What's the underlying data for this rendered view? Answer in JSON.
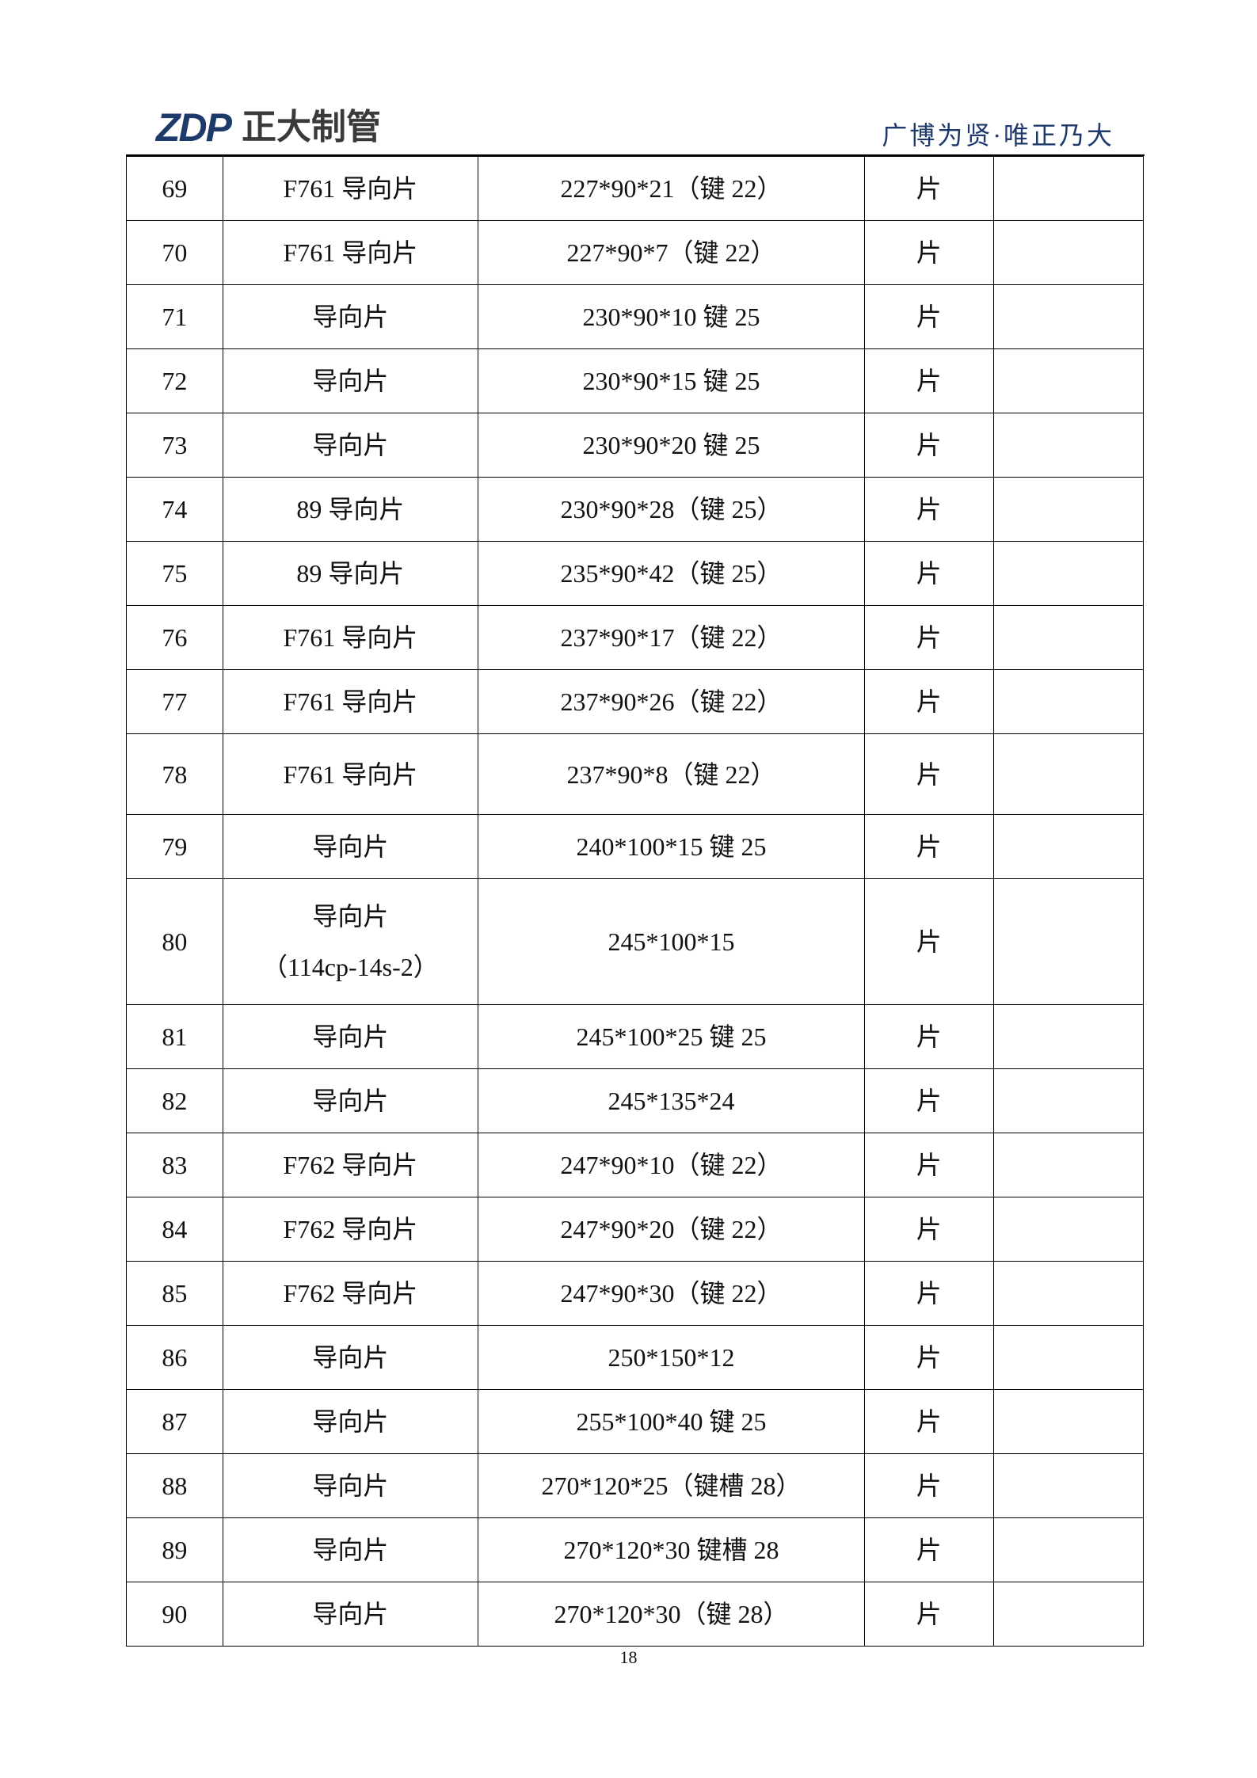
{
  "header": {
    "logo_mark": "ZDP",
    "logo_name": "正大制管",
    "slogan": "广博为贤·唯正乃大"
  },
  "table": {
    "rows": [
      {
        "no": "69",
        "name": "F761 导向片",
        "spec": "227*90*21（键 22）",
        "unit": "片",
        "note": ""
      },
      {
        "no": "70",
        "name": "F761 导向片",
        "spec": "227*90*7（键 22）",
        "unit": "片",
        "note": ""
      },
      {
        "no": "71",
        "name": "导向片",
        "spec": "230*90*10 键 25",
        "unit": "片",
        "note": ""
      },
      {
        "no": "72",
        "name": "导向片",
        "spec": "230*90*15 键 25",
        "unit": "片",
        "note": ""
      },
      {
        "no": "73",
        "name": "导向片",
        "spec": "230*90*20 键 25",
        "unit": "片",
        "note": ""
      },
      {
        "no": "74",
        "name": "89 导向片",
        "spec": "230*90*28（键 25）",
        "unit": "片",
        "note": ""
      },
      {
        "no": "75",
        "name": "89 导向片",
        "spec": "235*90*42（键 25）",
        "unit": "片",
        "note": ""
      },
      {
        "no": "76",
        "name": "F761 导向片",
        "spec": "237*90*17（键 22）",
        "unit": "片",
        "note": ""
      },
      {
        "no": "77",
        "name": "F761 导向片",
        "spec": "237*90*26（键 22）",
        "unit": "片",
        "note": ""
      },
      {
        "no": "78",
        "name": "F761 导向片",
        "spec": "237*90*8（键 22）",
        "unit": "片",
        "note": ""
      },
      {
        "no": "79",
        "name": "导向片",
        "spec": "240*100*15 键 25",
        "unit": "片",
        "note": ""
      },
      {
        "no": "80",
        "name": "导向片\n（114cp-14s-2）",
        "spec": "245*100*15",
        "unit": "片",
        "note": ""
      },
      {
        "no": "81",
        "name": "导向片",
        "spec": "245*100*25 键 25",
        "unit": "片",
        "note": ""
      },
      {
        "no": "82",
        "name": "导向片",
        "spec": "245*135*24",
        "unit": "片",
        "note": ""
      },
      {
        "no": "83",
        "name": "F762 导向片",
        "spec": "247*90*10（键 22）",
        "unit": "片",
        "note": ""
      },
      {
        "no": "84",
        "name": "F762 导向片",
        "spec": "247*90*20（键 22）",
        "unit": "片",
        "note": ""
      },
      {
        "no": "85",
        "name": "F762 导向片",
        "spec": "247*90*30（键 22）",
        "unit": "片",
        "note": ""
      },
      {
        "no": "86",
        "name": "导向片",
        "spec": "250*150*12",
        "unit": "片",
        "note": ""
      },
      {
        "no": "87",
        "name": "导向片",
        "spec": "255*100*40 键 25",
        "unit": "片",
        "note": ""
      },
      {
        "no": "88",
        "name": "导向片",
        "spec": "270*120*25（键槽 28）",
        "unit": "片",
        "note": ""
      },
      {
        "no": "89",
        "name": "导向片",
        "spec": "270*120*30 键槽 28",
        "unit": "片",
        "note": ""
      },
      {
        "no": "90",
        "name": "导向片",
        "spec": "270*120*30（键 28）",
        "unit": "片",
        "note": ""
      }
    ]
  },
  "footer": {
    "page_number": "18"
  },
  "colors": {
    "brand": "#1d3a6b",
    "logo_text": "#3a3a3a"
  }
}
